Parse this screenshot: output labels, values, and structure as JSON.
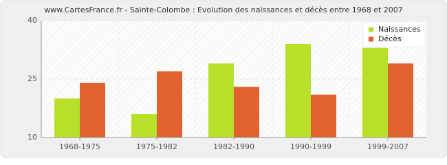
{
  "chart_data": {
    "type": "bar",
    "title": "www.CartesFrance.fr - Sainte-Colombe : Evolution des naissances et décès entre 1968 et 2007",
    "categories": [
      "1968-1975",
      "1975-1982",
      "1982-1990",
      "1990-1999",
      "1999-2007"
    ],
    "series": [
      {
        "name": "Naissances",
        "color": "#b8e02a",
        "values": [
          20,
          16,
          29,
          34,
          33
        ]
      },
      {
        "name": "Décès",
        "color": "#e0622e",
        "values": [
          24,
          27,
          23,
          21,
          29
        ]
      }
    ],
    "ylim": [
      10,
      40
    ],
    "yticks": [
      10,
      25,
      40
    ],
    "grid": true,
    "legend": "upper right"
  }
}
